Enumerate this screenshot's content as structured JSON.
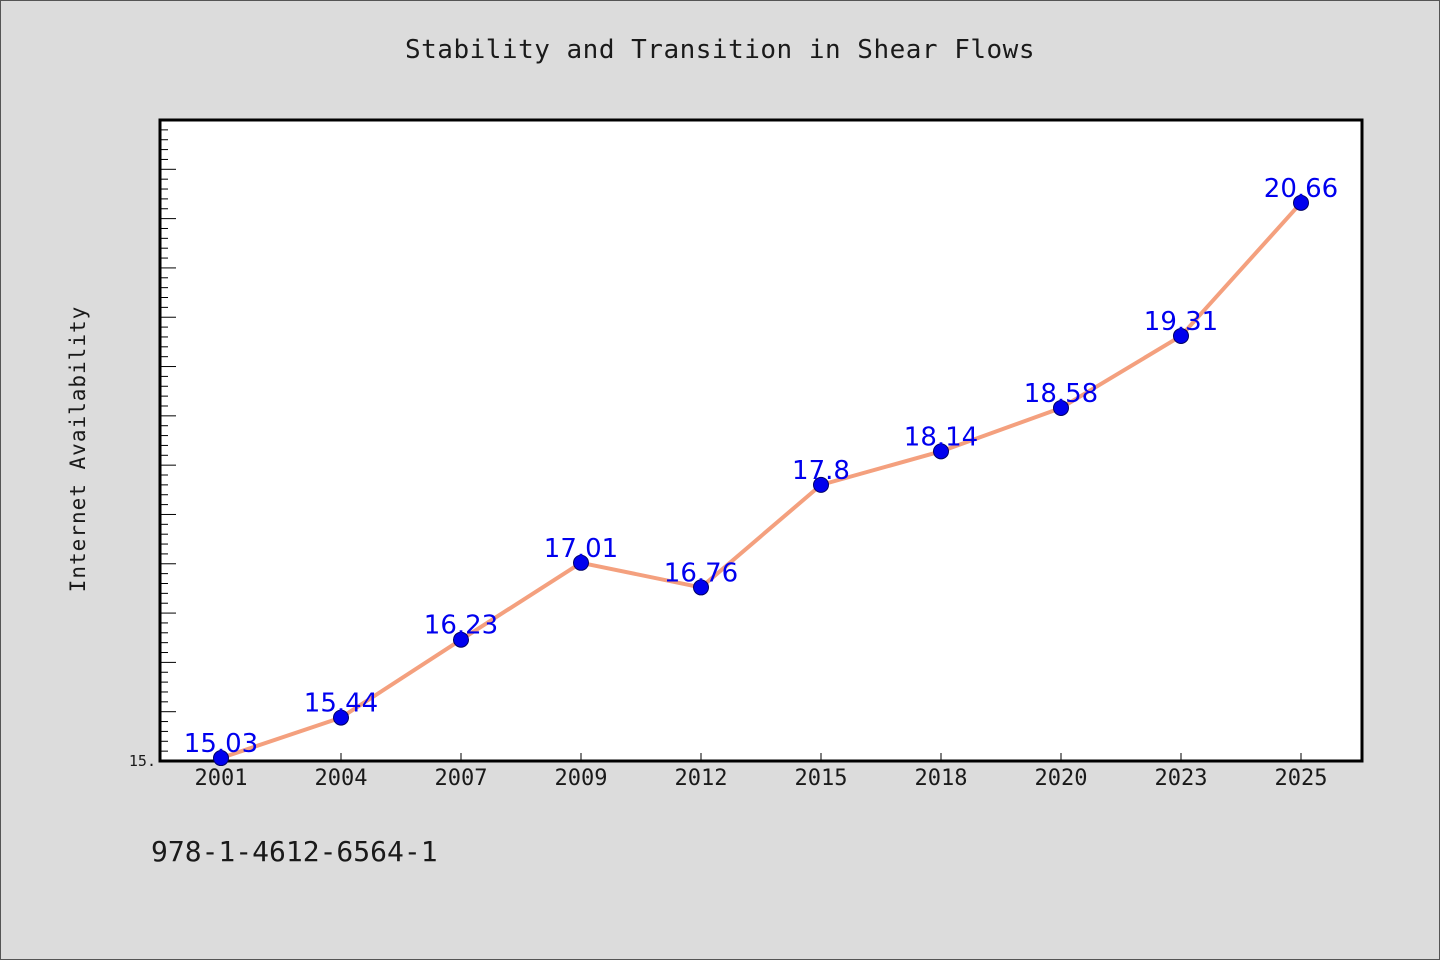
{
  "colors": {
    "background": "#dcdcdc",
    "plot_area": "#ffffff",
    "line": "#f4a07e",
    "marker": "#0000ee",
    "data_label": "#0000ee"
  },
  "footer": {
    "isbn": "978-1-4612-6564-1"
  },
  "chart_data": {
    "type": "line",
    "title": "Stability and Transition in Shear Flows",
    "xlabel": "",
    "ylabel": "Internet Availability",
    "categories": [
      "2001",
      "2004",
      "2007",
      "2009",
      "2012",
      "2015",
      "2018",
      "2020",
      "2023",
      "2025"
    ],
    "series": [
      {
        "values": [
          15.03,
          15.44,
          16.23,
          17.01,
          16.76,
          17.8,
          18.14,
          18.58,
          19.31,
          20.66
        ],
        "data_labels": [
          "15.03",
          "15.44",
          "16.23",
          "17.01",
          "16.76",
          "17.8",
          "18.14",
          "18.58",
          "19.31",
          "20.66"
        ]
      }
    ],
    "y_tick_labels": [
      "15."
    ],
    "ylim": [
      15.0,
      21.5
    ],
    "y_minor_tick_step": 0.1,
    "y_major_tick_step": 0.5,
    "grid": false,
    "legend": "none"
  }
}
